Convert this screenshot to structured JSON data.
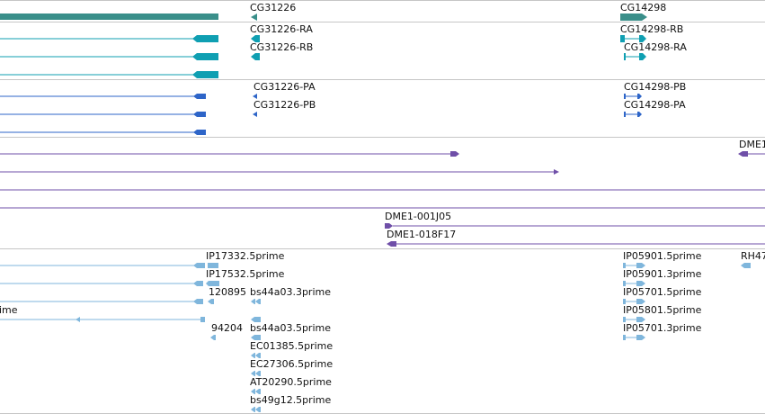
{
  "colors": {
    "gene": "#3a8f8a",
    "transcript": "#0f9fb2",
    "protein": "#2e65c8",
    "clone": "#6f4fa8",
    "est": "#7fb6dc",
    "divider": "#c6c6c6"
  },
  "tracks": {
    "genes": {
      "features": [
        {
          "label": "CG31226"
        },
        {
          "label": "CG14298"
        }
      ]
    },
    "transcripts": {
      "features": [
        {
          "label": "CG31226-RA"
        },
        {
          "label": "CG31226-RB"
        },
        {
          "label": "CG14298-RB"
        },
        {
          "label": "CG14298-RA"
        }
      ]
    },
    "proteins": {
      "features": [
        {
          "label": "CG31226-PA"
        },
        {
          "label": "CG31226-PB"
        },
        {
          "label": "CG14298-PB"
        },
        {
          "label": "CG14298-PA"
        }
      ]
    },
    "clones": {
      "features": [
        {
          "label": "DME1"
        },
        {
          "label": "DME1-001J05"
        },
        {
          "label": "DME1-018F17"
        }
      ]
    },
    "ests": {
      "features": [
        {
          "label": "IP17332.5prime"
        },
        {
          "label": "IP17532.5prime"
        },
        {
          "label": "120895"
        },
        {
          "label": "bs44a03.3prime"
        },
        {
          "label": "94204"
        },
        {
          "label": "bs44a03.5prime"
        },
        {
          "label": "EC01385.5prime"
        },
        {
          "label": "EC27306.5prime"
        },
        {
          "label": "AT20290.5prime"
        },
        {
          "label": "bs49g12.5prime"
        },
        {
          "label": "IP05901.5prime"
        },
        {
          "label": "IP05901.3prime"
        },
        {
          "label": "IP05701.5prime"
        },
        {
          "label": "IP05801.5prime"
        },
        {
          "label": "IP05701.3prime"
        },
        {
          "label": "RH47"
        },
        {
          "label": "ime"
        }
      ]
    }
  }
}
